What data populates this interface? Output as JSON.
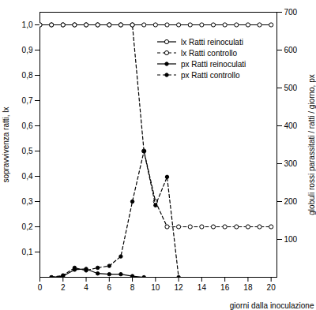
{
  "chart_data": {
    "type": "line",
    "x_label": "giorni dalla inoculazione",
    "y_label": "sopravvivenza ratti, lx",
    "y2_label": "globuli rossi parassitati / ratti / giorno, px",
    "x": [
      0,
      1,
      2,
      3,
      4,
      5,
      6,
      7,
      8,
      9,
      10,
      11,
      12,
      13,
      14,
      15,
      16,
      17,
      18,
      19,
      20
    ],
    "xlim": [
      0,
      20.5
    ],
    "xticks": [
      0,
      2,
      4,
      6,
      8,
      10,
      12,
      14,
      16,
      18,
      20
    ],
    "ylim": [
      0,
      1.05
    ],
    "yticks": [
      {
        "value": 0.1,
        "label": "0,1"
      },
      {
        "value": 0.2,
        "label": "0,2"
      },
      {
        "value": 0.3,
        "label": "0,3"
      },
      {
        "value": 0.4,
        "label": "0,4"
      },
      {
        "value": 0.5,
        "label": "0,5"
      },
      {
        "value": 0.6,
        "label": "0,6"
      },
      {
        "value": 0.7,
        "label": "0,7"
      },
      {
        "value": 0.8,
        "label": "0,8"
      },
      {
        "value": 0.9,
        "label": "0,9"
      },
      {
        "value": 1.0,
        "label": "1,0"
      }
    ],
    "y2lim": [
      0,
      700
    ],
    "y2ticks": [
      100,
      200,
      300,
      400,
      500,
      600,
      700
    ],
    "legend": "upper right",
    "series": [
      {
        "name": "lx Ratti reinoculati",
        "color": "#000000",
        "marker": "open_circle",
        "line_style": "solid",
        "values": [
          1,
          1,
          1,
          1,
          1,
          1,
          1,
          1,
          1,
          1,
          1,
          1,
          1,
          1,
          1,
          1,
          1,
          1,
          1,
          1,
          1
        ]
      },
      {
        "name": "lx Ratti controllo",
        "color": "#000000",
        "marker": "open_circle",
        "line_style": "dashed",
        "values": [
          1,
          1,
          1,
          1,
          1,
          1,
          1,
          1,
          1,
          0.5,
          0.3,
          0.2,
          0.2,
          0.2,
          0.2,
          0.2,
          0.2,
          0.2,
          0.2,
          0.2,
          0.2
        ]
      },
      {
        "name": "px Ratti reinoculati",
        "color": "#000000",
        "marker": "filled_circle",
        "line_style": "solid",
        "axis": "y2",
        "values": [
          null,
          0,
          3,
          20,
          22,
          10,
          8,
          8,
          3,
          0,
          null,
          null,
          null,
          null,
          null,
          null,
          null,
          null,
          null,
          null,
          null
        ]
      },
      {
        "name": "px Ratti controllo",
        "color": "#000000",
        "marker": "filled_circle",
        "line_style": "dashed",
        "axis": "y2",
        "values": [
          null,
          0,
          5,
          25,
          18,
          25,
          30,
          55,
          200,
          333,
          190,
          265,
          0,
          null,
          null,
          null,
          null,
          null,
          null,
          null,
          null
        ]
      }
    ]
  }
}
